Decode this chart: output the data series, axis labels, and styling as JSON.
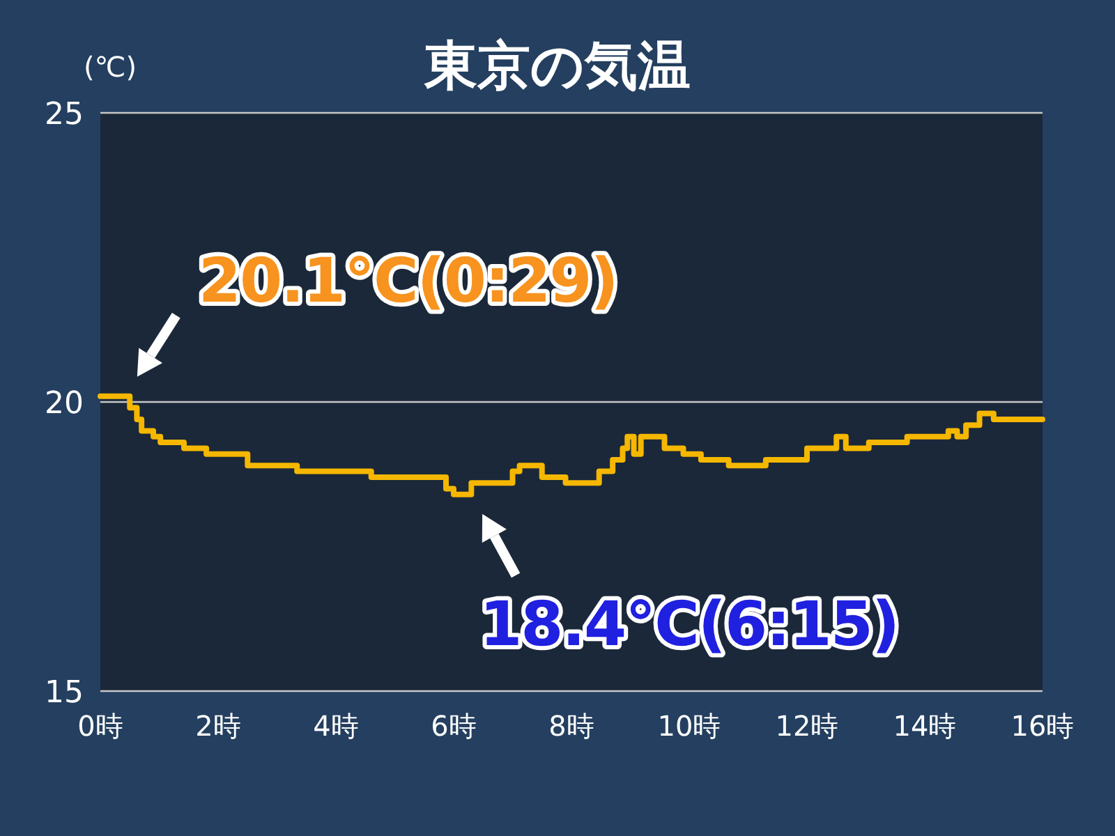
{
  "chart_data": {
    "type": "step",
    "title": "東京の気温",
    "ylabel": "(℃)",
    "x": [
      0,
      0.5,
      0.62,
      0.7,
      0.9,
      1.02,
      1.42,
      1.8,
      2.5,
      3.34,
      4.6,
      5.87,
      6.0,
      6.3,
      7.0,
      7.12,
      7.5,
      7.9,
      8.47,
      8.7,
      8.87,
      8.95,
      9.06,
      9.18,
      9.58,
      9.9,
      10.2,
      10.67,
      11.3,
      12.0,
      12.5,
      12.6,
      12.66,
      13.05,
      13.7,
      14.4,
      14.55,
      14.7,
      14.93,
      15.17,
      16
    ],
    "series": [
      {
        "color": "#f5b700",
        "values": [
          20.1,
          19.9,
          19.7,
          19.5,
          19.4,
          19.3,
          19.2,
          19.1,
          18.9,
          18.8,
          18.7,
          18.5,
          18.4,
          18.6,
          18.8,
          18.9,
          18.7,
          18.6,
          18.8,
          19.0,
          19.2,
          19.4,
          19.1,
          19.4,
          19.2,
          19.1,
          19.0,
          18.9,
          19.0,
          19.2,
          19.4,
          19.4,
          19.2,
          19.3,
          19.4,
          19.5,
          19.4,
          19.6,
          19.8,
          19.7,
          19.7
        ]
      }
    ],
    "xlim": [
      0,
      16
    ],
    "xticks": [
      {
        "value": 0,
        "label": "0時"
      },
      {
        "value": 2,
        "label": "2時"
      },
      {
        "value": 4,
        "label": "4時"
      },
      {
        "value": 6,
        "label": "6時"
      },
      {
        "value": 8,
        "label": "8時"
      },
      {
        "value": 10,
        "label": "10時"
      },
      {
        "value": 12,
        "label": "12時"
      },
      {
        "value": 14,
        "label": "14時"
      },
      {
        "value": 16,
        "label": "16時"
      }
    ],
    "ylim": [
      15,
      25
    ],
    "yticks": [
      15,
      20,
      25
    ],
    "grid": "y",
    "line_style": "solid",
    "marker": "none",
    "annotations": [
      {
        "text": "20.1℃(0:29)",
        "x": 0.483,
        "y": 20.1
      },
      {
        "text": "18.4℃(6:15)",
        "x": 6.25,
        "y": 18.4
      }
    ]
  }
}
